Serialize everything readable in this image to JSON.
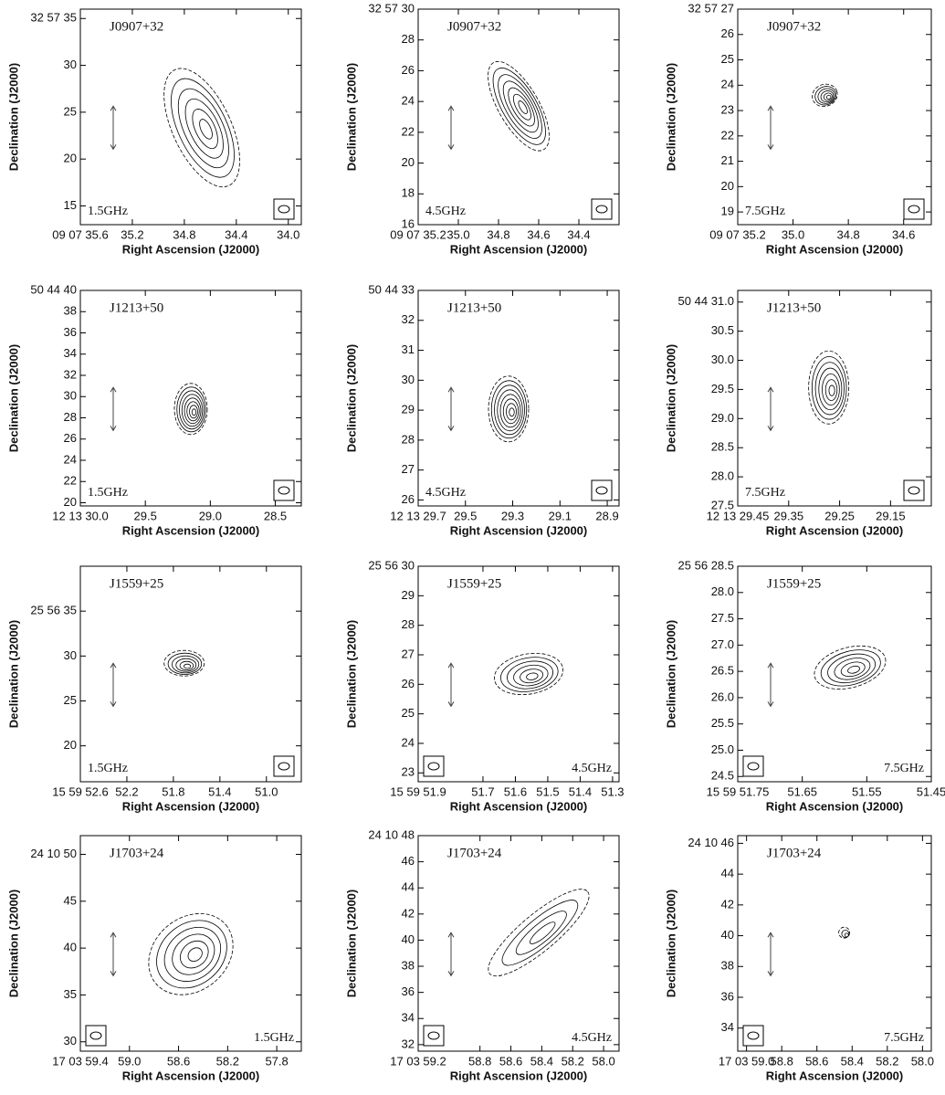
{
  "x_label": "Right Ascension (J2000)",
  "y_label": "Declination (J2000)",
  "chart_data": [
    {
      "type": "contour",
      "source": "J0907+32",
      "frequency": "1.5GHz",
      "xlim": [
        35.6,
        33.9
      ],
      "ylim": [
        13,
        36
      ],
      "xticks": [
        {
          "value": 35.6,
          "label": "09 07 35.6"
        },
        35.2,
        34.8,
        34.4,
        {
          "value": 34,
          "label": "34.0"
        }
      ],
      "yticks": [
        15,
        20,
        25,
        30,
        {
          "value": 35,
          "label": "32 57 35"
        }
      ]
    },
    {
      "type": "contour",
      "source": "J0907+32",
      "frequency": "4.5GHz",
      "xlim": [
        35.2,
        34.2
      ],
      "ylim": [
        16,
        30
      ],
      "xticks": [
        {
          "value": 35.2,
          "label": "09 07 35.2"
        },
        {
          "value": 35,
          "label": "35.0"
        },
        34.8,
        34.6,
        34.4
      ],
      "yticks": [
        16,
        18,
        20,
        22,
        24,
        26,
        28,
        {
          "value": 30,
          "label": "32 57 30"
        }
      ]
    },
    {
      "type": "contour",
      "source": "J0907+32",
      "frequency": "7.5GHz",
      "xlim": [
        35.2,
        34.5
      ],
      "ylim": [
        18.5,
        27
      ],
      "xticks": [
        {
          "value": 35.2,
          "label": "09 07 35.2"
        },
        {
          "value": 35,
          "label": "35.0"
        },
        34.8,
        34.6
      ],
      "yticks": [
        19,
        20,
        21,
        22,
        23,
        24,
        25,
        26,
        {
          "value": 27,
          "label": "32 57 27"
        }
      ]
    },
    {
      "type": "contour",
      "source": "J1213+50",
      "frequency": "1.5GHz",
      "xlim": [
        30.0,
        28.3
      ],
      "ylim": [
        19.7,
        40
      ],
      "xticks": [
        {
          "value": 30,
          "label": "12 13 30.0"
        },
        29.5,
        {
          "value": 29,
          "label": "29.0"
        },
        28.5
      ],
      "yticks": [
        20,
        22,
        24,
        26,
        28,
        30,
        32,
        34,
        36,
        38,
        {
          "value": 40,
          "label": "50 44 40"
        }
      ]
    },
    {
      "type": "contour",
      "source": "J1213+50",
      "frequency": "4.5GHz",
      "xlim": [
        29.7,
        28.85
      ],
      "ylim": [
        25.8,
        33
      ],
      "xticks": [
        {
          "value": 29.7,
          "label": "12 13 29.7"
        },
        29.5,
        29.3,
        29.1,
        28.9
      ],
      "yticks": [
        26,
        27,
        28,
        29,
        30,
        31,
        32,
        {
          "value": 33,
          "label": "50 44 33"
        }
      ]
    },
    {
      "type": "contour",
      "source": "J1213+50",
      "frequency": "7.5GHz",
      "xlim": [
        29.45,
        29.07
      ],
      "ylim": [
        27.5,
        31.2
      ],
      "xticks": [
        {
          "value": 29.45,
          "label": "12 13 29.45"
        },
        29.35,
        29.25,
        29.15
      ],
      "yticks": [
        27.5,
        {
          "value": 28,
          "label": "28.0"
        },
        28.5,
        {
          "value": 29,
          "label": "29.0"
        },
        29.5,
        {
          "value": 30,
          "label": "30.0"
        },
        30.5,
        {
          "value": 31,
          "label": "50 44 31.0"
        }
      ]
    },
    {
      "type": "contour",
      "source": "J1559+25",
      "frequency": "1.5GHz",
      "xlim": [
        52.6,
        50.7
      ],
      "ylim": [
        16,
        40
      ],
      "xticks": [
        {
          "value": 52.6,
          "label": "15 59 52.6"
        },
        52.2,
        51.8,
        51.4,
        {
          "value": 51,
          "label": "51.0"
        }
      ],
      "yticks": [
        20,
        25,
        30,
        {
          "value": 35,
          "label": "25 56 35"
        }
      ]
    },
    {
      "type": "contour",
      "source": "J1559+25",
      "frequency": "4.5GHz",
      "xlim": [
        51.9,
        51.28
      ],
      "ylim": [
        22.7,
        30
      ],
      "xticks": [
        {
          "value": 51.9,
          "label": "15 59 51.9"
        },
        51.7,
        51.6,
        51.5,
        51.4,
        51.3
      ],
      "yticks": [
        23,
        24,
        25,
        26,
        27,
        28,
        29,
        {
          "value": 30,
          "label": "25 56 30"
        }
      ]
    },
    {
      "type": "contour",
      "source": "J1559+25",
      "frequency": "7.5GHz",
      "xlim": [
        51.75,
        51.45
      ],
      "ylim": [
        24.4,
        28.5
      ],
      "xticks": [
        {
          "value": 51.75,
          "label": "15 59 51.75"
        },
        51.65,
        51.55,
        51.45
      ],
      "yticks": [
        24.5,
        {
          "value": 25,
          "label": "25.0"
        },
        25.5,
        {
          "value": 26,
          "label": "26.0"
        },
        26.5,
        {
          "value": 27,
          "label": "27.0"
        },
        27.5,
        {
          "value": 28,
          "label": "28.0"
        },
        {
          "value": 28.5,
          "label": "25 56 28.5"
        }
      ]
    },
    {
      "type": "contour",
      "source": "J1703+24",
      "frequency": "1.5GHz",
      "xlim": [
        59.4,
        57.6
      ],
      "ylim": [
        29,
        52
      ],
      "xticks": [
        {
          "value": 59.4,
          "label": "17 03 59.4"
        },
        {
          "value": 59,
          "label": "59.0"
        },
        58.6,
        58.2,
        57.8
      ],
      "yticks": [
        30,
        35,
        40,
        45,
        {
          "value": 50,
          "label": "24 10 50"
        }
      ]
    },
    {
      "type": "contour",
      "source": "J1703+24",
      "frequency": "4.5GHz",
      "xlim": [
        59.2,
        57.9
      ],
      "ylim": [
        31.5,
        48
      ],
      "xticks": [
        {
          "value": 59.2,
          "label": "17 03 59.2"
        },
        58.8,
        58.6,
        58.4,
        58.2,
        {
          "value": 58,
          "label": "58.0"
        }
      ],
      "yticks": [
        32,
        34,
        36,
        38,
        40,
        42,
        44,
        46,
        {
          "value": 48,
          "label": "24 10 48"
        }
      ]
    },
    {
      "type": "contour",
      "source": "J1703+24",
      "frequency": "7.5GHz",
      "xlim": [
        59.05,
        57.95
      ],
      "ylim": [
        32.5,
        46.5
      ],
      "xticks": [
        {
          "value": 59,
          "label": "17 03 59.0"
        },
        58.8,
        58.6,
        58.4,
        58.2,
        {
          "value": 58,
          "label": "58.0"
        }
      ],
      "yticks": [
        34,
        36,
        38,
        40,
        42,
        44,
        {
          "value": 46,
          "label": "24 10 46"
        }
      ]
    }
  ]
}
